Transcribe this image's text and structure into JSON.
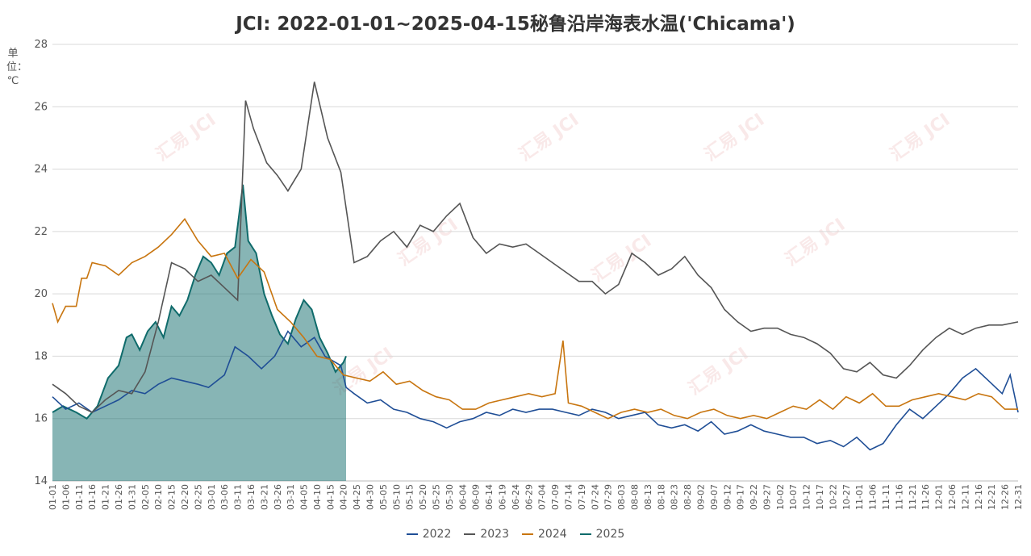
{
  "chart_data": {
    "type": "line",
    "title": "JCI: 2022-01-01~2025-04-15秘鲁沿岸海表水温('Chicama')",
    "ylabel": "单位：℃",
    "ylim": [
      14,
      28
    ],
    "yticks": [
      14,
      16,
      18,
      20,
      22,
      24,
      26,
      28
    ],
    "grid": true,
    "legend_position": "bottom",
    "watermark": "汇易 JCI",
    "x_tick_labels": [
      "01-01",
      "01-06",
      "01-11",
      "01-16",
      "01-21",
      "01-26",
      "01-31",
      "02-05",
      "02-10",
      "02-15",
      "02-20",
      "02-25",
      "03-01",
      "03-06",
      "03-11",
      "03-16",
      "03-21",
      "03-26",
      "03-31",
      "04-05",
      "04-10",
      "04-15",
      "04-20",
      "04-25",
      "04-30",
      "05-05",
      "05-10",
      "05-15",
      "05-20",
      "05-25",
      "05-30",
      "06-04",
      "06-09",
      "06-14",
      "06-19",
      "06-24",
      "06-29",
      "07-04",
      "07-09",
      "07-14",
      "07-19",
      "07-24",
      "07-29",
      "08-03",
      "08-08",
      "08-13",
      "08-18",
      "08-23",
      "08-28",
      "09-02",
      "09-07",
      "09-12",
      "09-17",
      "09-22",
      "09-27",
      "10-02",
      "10-07",
      "10-12",
      "10-17",
      "10-22",
      "10-27",
      "11-01",
      "11-06",
      "11-11",
      "11-16",
      "11-21",
      "11-26",
      "12-01",
      "12-06",
      "12-11",
      "12-16",
      "12-21",
      "12-26",
      "12-31"
    ],
    "series": [
      {
        "name": "2022",
        "color": "#1f4e96",
        "style": "line",
        "points": [
          [
            1,
            16.7
          ],
          [
            6,
            16.3
          ],
          [
            11,
            16.5
          ],
          [
            16,
            16.2
          ],
          [
            21,
            16.4
          ],
          [
            26,
            16.6
          ],
          [
            31,
            16.9
          ],
          [
            36,
            16.8
          ],
          [
            41,
            17.1
          ],
          [
            46,
            17.3
          ],
          [
            51,
            17.2
          ],
          [
            56,
            17.1
          ],
          [
            60,
            17.0
          ],
          [
            66,
            17.4
          ],
          [
            70,
            18.3
          ],
          [
            75,
            18.0
          ],
          [
            80,
            17.6
          ],
          [
            85,
            18.0
          ],
          [
            90,
            18.8
          ],
          [
            95,
            18.3
          ],
          [
            100,
            18.6
          ],
          [
            104,
            18.0
          ],
          [
            110,
            17.7
          ],
          [
            112,
            17.0
          ],
          [
            115,
            16.8
          ],
          [
            120,
            16.5
          ],
          [
            125,
            16.6
          ],
          [
            130,
            16.3
          ],
          [
            135,
            16.2
          ],
          [
            140,
            16.0
          ],
          [
            145,
            15.9
          ],
          [
            150,
            15.7
          ],
          [
            155,
            15.9
          ],
          [
            160,
            16.0
          ],
          [
            165,
            16.2
          ],
          [
            170,
            16.1
          ],
          [
            175,
            16.3
          ],
          [
            180,
            16.2
          ],
          [
            185,
            16.3
          ],
          [
            190,
            16.3
          ],
          [
            195,
            16.2
          ],
          [
            200,
            16.1
          ],
          [
            205,
            16.3
          ],
          [
            210,
            16.2
          ],
          [
            215,
            16.0
          ],
          [
            220,
            16.1
          ],
          [
            225,
            16.2
          ],
          [
            230,
            15.8
          ],
          [
            235,
            15.7
          ],
          [
            240,
            15.8
          ],
          [
            245,
            15.6
          ],
          [
            250,
            15.9
          ],
          [
            255,
            15.5
          ],
          [
            260,
            15.6
          ],
          [
            265,
            15.8
          ],
          [
            270,
            15.6
          ],
          [
            275,
            15.5
          ],
          [
            280,
            15.4
          ],
          [
            285,
            15.4
          ],
          [
            290,
            15.2
          ],
          [
            295,
            15.3
          ],
          [
            300,
            15.1
          ],
          [
            305,
            15.4
          ],
          [
            310,
            15.0
          ],
          [
            315,
            15.2
          ],
          [
            320,
            15.8
          ],
          [
            325,
            16.3
          ],
          [
            330,
            16.0
          ],
          [
            335,
            16.4
          ],
          [
            340,
            16.8
          ],
          [
            345,
            17.3
          ],
          [
            350,
            17.6
          ],
          [
            355,
            17.2
          ],
          [
            360,
            16.8
          ],
          [
            363,
            17.4
          ],
          [
            366,
            16.2
          ]
        ]
      },
      {
        "name": "2023",
        "color": "#555555",
        "style": "line",
        "points": [
          [
            1,
            17.1
          ],
          [
            6,
            16.8
          ],
          [
            11,
            16.4
          ],
          [
            16,
            16.2
          ],
          [
            21,
            16.6
          ],
          [
            26,
            16.9
          ],
          [
            31,
            16.8
          ],
          [
            36,
            17.5
          ],
          [
            41,
            19.1
          ],
          [
            46,
            21.0
          ],
          [
            51,
            20.8
          ],
          [
            56,
            20.4
          ],
          [
            61,
            20.6
          ],
          [
            66,
            20.2
          ],
          [
            71,
            19.8
          ],
          [
            74,
            26.2
          ],
          [
            77,
            25.3
          ],
          [
            82,
            24.2
          ],
          [
            86,
            23.8
          ],
          [
            90,
            23.3
          ],
          [
            95,
            24.0
          ],
          [
            100,
            26.8
          ],
          [
            105,
            25.0
          ],
          [
            110,
            23.9
          ],
          [
            115,
            21.0
          ],
          [
            120,
            21.2
          ],
          [
            125,
            21.7
          ],
          [
            130,
            22.0
          ],
          [
            135,
            21.5
          ],
          [
            140,
            22.2
          ],
          [
            145,
            22.0
          ],
          [
            150,
            22.5
          ],
          [
            155,
            22.9
          ],
          [
            160,
            21.8
          ],
          [
            165,
            21.3
          ],
          [
            170,
            21.6
          ],
          [
            175,
            21.5
          ],
          [
            180,
            21.6
          ],
          [
            185,
            21.3
          ],
          [
            190,
            21.0
          ],
          [
            195,
            20.7
          ],
          [
            200,
            20.4
          ],
          [
            205,
            20.4
          ],
          [
            210,
            20.0
          ],
          [
            215,
            20.3
          ],
          [
            220,
            21.3
          ],
          [
            225,
            21.0
          ],
          [
            230,
            20.6
          ],
          [
            235,
            20.8
          ],
          [
            240,
            21.2
          ],
          [
            245,
            20.6
          ],
          [
            250,
            20.2
          ],
          [
            255,
            19.5
          ],
          [
            260,
            19.1
          ],
          [
            265,
            18.8
          ],
          [
            270,
            18.9
          ],
          [
            275,
            18.9
          ],
          [
            280,
            18.7
          ],
          [
            285,
            18.6
          ],
          [
            290,
            18.4
          ],
          [
            295,
            18.1
          ],
          [
            300,
            17.6
          ],
          [
            305,
            17.5
          ],
          [
            310,
            17.8
          ],
          [
            315,
            17.4
          ],
          [
            320,
            17.3
          ],
          [
            325,
            17.7
          ],
          [
            330,
            18.2
          ],
          [
            335,
            18.6
          ],
          [
            340,
            18.9
          ],
          [
            345,
            18.7
          ],
          [
            350,
            18.9
          ],
          [
            355,
            19.0
          ],
          [
            360,
            19.0
          ],
          [
            366,
            19.1
          ]
        ]
      },
      {
        "name": "2024",
        "color": "#c8750f",
        "style": "line",
        "points": [
          [
            1,
            19.7
          ],
          [
            3,
            19.1
          ],
          [
            6,
            19.6
          ],
          [
            10,
            19.6
          ],
          [
            12,
            20.5
          ],
          [
            14,
            20.5
          ],
          [
            16,
            21.0
          ],
          [
            21,
            20.9
          ],
          [
            26,
            20.6
          ],
          [
            31,
            21.0
          ],
          [
            36,
            21.2
          ],
          [
            41,
            21.5
          ],
          [
            46,
            21.9
          ],
          [
            51,
            22.4
          ],
          [
            56,
            21.7
          ],
          [
            61,
            21.2
          ],
          [
            66,
            21.3
          ],
          [
            71,
            20.5
          ],
          [
            76,
            21.1
          ],
          [
            81,
            20.7
          ],
          [
            86,
            19.5
          ],
          [
            91,
            19.1
          ],
          [
            96,
            18.6
          ],
          [
            101,
            18.0
          ],
          [
            106,
            17.9
          ],
          [
            111,
            17.4
          ],
          [
            116,
            17.3
          ],
          [
            121,
            17.2
          ],
          [
            126,
            17.5
          ],
          [
            131,
            17.1
          ],
          [
            136,
            17.2
          ],
          [
            141,
            16.9
          ],
          [
            146,
            16.7
          ],
          [
            151,
            16.6
          ],
          [
            156,
            16.3
          ],
          [
            161,
            16.3
          ],
          [
            166,
            16.5
          ],
          [
            171,
            16.6
          ],
          [
            176,
            16.7
          ],
          [
            181,
            16.8
          ],
          [
            186,
            16.7
          ],
          [
            191,
            16.8
          ],
          [
            194,
            18.5
          ],
          [
            196,
            16.5
          ],
          [
            201,
            16.4
          ],
          [
            206,
            16.2
          ],
          [
            211,
            16.0
          ],
          [
            216,
            16.2
          ],
          [
            221,
            16.3
          ],
          [
            226,
            16.2
          ],
          [
            231,
            16.3
          ],
          [
            236,
            16.1
          ],
          [
            241,
            16.0
          ],
          [
            246,
            16.2
          ],
          [
            251,
            16.3
          ],
          [
            256,
            16.1
          ],
          [
            261,
            16.0
          ],
          [
            266,
            16.1
          ],
          [
            271,
            16.0
          ],
          [
            276,
            16.2
          ],
          [
            281,
            16.4
          ],
          [
            286,
            16.3
          ],
          [
            291,
            16.6
          ],
          [
            296,
            16.3
          ],
          [
            301,
            16.7
          ],
          [
            306,
            16.5
          ],
          [
            311,
            16.8
          ],
          [
            316,
            16.4
          ],
          [
            321,
            16.4
          ],
          [
            326,
            16.6
          ],
          [
            331,
            16.7
          ],
          [
            336,
            16.8
          ],
          [
            341,
            16.7
          ],
          [
            346,
            16.6
          ],
          [
            351,
            16.8
          ],
          [
            356,
            16.7
          ],
          [
            361,
            16.3
          ],
          [
            366,
            16.3
          ]
        ]
      },
      {
        "name": "2025",
        "color": "#0f6b6b",
        "style": "area",
        "points": [
          [
            1,
            16.2
          ],
          [
            5,
            16.4
          ],
          [
            10,
            16.2
          ],
          [
            14,
            16.0
          ],
          [
            18,
            16.4
          ],
          [
            22,
            17.3
          ],
          [
            26,
            17.7
          ],
          [
            29,
            18.6
          ],
          [
            31,
            18.7
          ],
          [
            34,
            18.2
          ],
          [
            37,
            18.8
          ],
          [
            40,
            19.1
          ],
          [
            43,
            18.6
          ],
          [
            46,
            19.6
          ],
          [
            49,
            19.3
          ],
          [
            52,
            19.8
          ],
          [
            55,
            20.6
          ],
          [
            58,
            21.2
          ],
          [
            61,
            21.0
          ],
          [
            64,
            20.6
          ],
          [
            67,
            21.3
          ],
          [
            70,
            21.5
          ],
          [
            73,
            23.5
          ],
          [
            75,
            21.7
          ],
          [
            78,
            21.3
          ],
          [
            81,
            20.0
          ],
          [
            84,
            19.3
          ],
          [
            87,
            18.7
          ],
          [
            90,
            18.4
          ],
          [
            93,
            19.2
          ],
          [
            96,
            19.8
          ],
          [
            99,
            19.5
          ],
          [
            102,
            18.6
          ],
          [
            105,
            18.1
          ],
          [
            108,
            17.5
          ],
          [
            111,
            17.8
          ],
          [
            112,
            18.0
          ]
        ]
      }
    ]
  }
}
